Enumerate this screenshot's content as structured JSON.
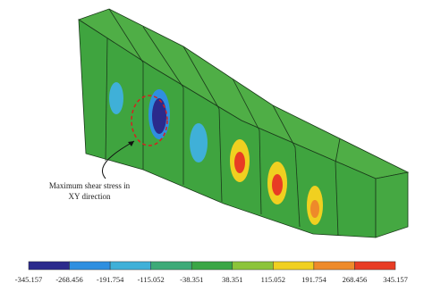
{
  "annotation": {
    "lines": [
      "Maximum shear stress in",
      "XY direction"
    ]
  },
  "colorbar": {
    "labels": [
      "-345.157",
      "-268.456",
      "-191.754",
      "-115.052",
      "-38.351",
      "38.351",
      "115.052",
      "191.754",
      "268.456",
      "345.157"
    ]
  }
}
